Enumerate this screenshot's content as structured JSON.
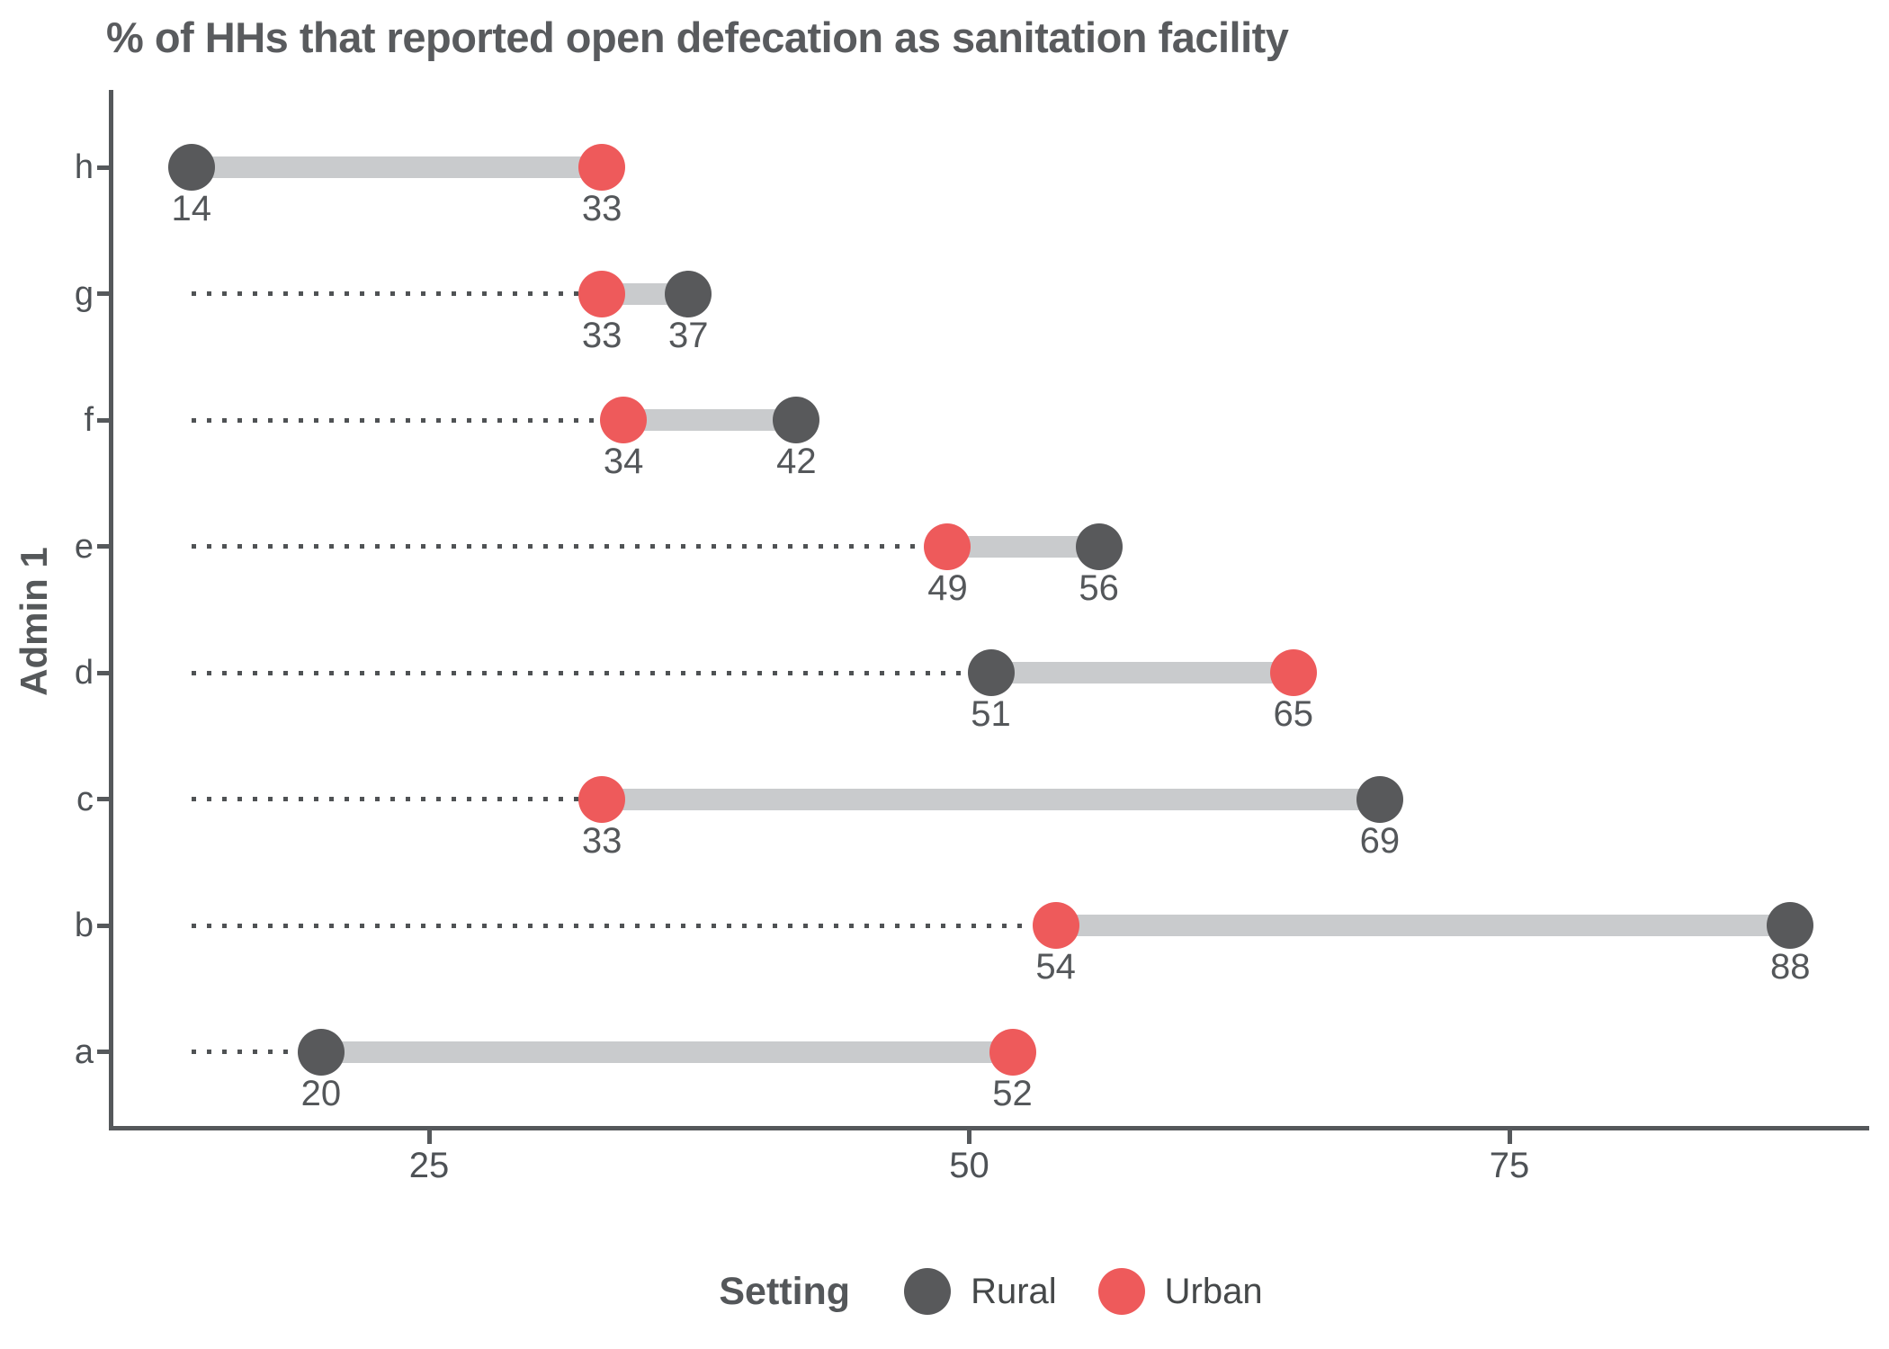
{
  "title": "% of HHs that reported open defecation as sanitation facility",
  "chart_data": {
    "type": "dumbbell",
    "orientation": "horizontal",
    "ylabel": "Admin 1",
    "xlabel": "",
    "x_ticks": [
      25,
      50,
      75
    ],
    "xlim_approx": [
      10.3,
      91.6
    ],
    "grid": "off",
    "leader_start_value": 14,
    "rows": [
      {
        "category": "h",
        "rural": 14,
        "urban": 33
      },
      {
        "category": "g",
        "rural": 37,
        "urban": 33
      },
      {
        "category": "f",
        "rural": 42,
        "urban": 34
      },
      {
        "category": "e",
        "rural": 56,
        "urban": 49
      },
      {
        "category": "d",
        "rural": 51,
        "urban": 65
      },
      {
        "category": "c",
        "rural": 69,
        "urban": 33
      },
      {
        "category": "b",
        "rural": 88,
        "urban": 54
      },
      {
        "category": "a",
        "rural": 20,
        "urban": 52
      }
    ],
    "legend": {
      "title": "Setting",
      "position": "bottom-center",
      "entries": [
        {
          "label": "Rural",
          "color": "#58595b"
        },
        {
          "label": "Urban",
          "color": "#ee5a5b"
        }
      ]
    },
    "colors": {
      "rural_dot": "#58595b",
      "urban_dot": "#ee5a5b",
      "band": "#c9cbcd",
      "leader_dots": "#4f5254",
      "axis": "#55585b",
      "text": "#54575a"
    }
  }
}
